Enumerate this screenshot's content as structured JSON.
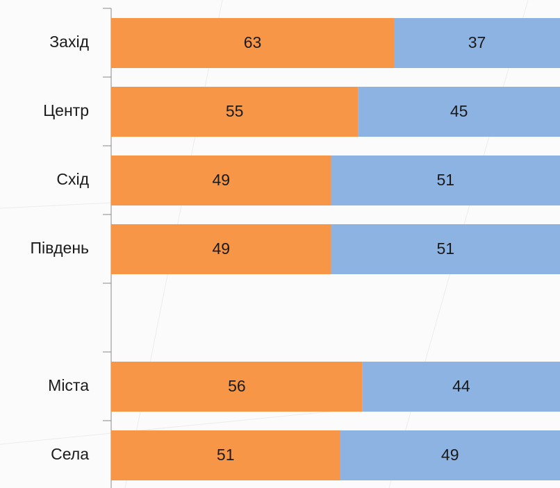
{
  "chart_data": {
    "type": "stacked-bar-horizontal",
    "categories": [
      "Захід",
      "Центр",
      "Схід",
      "Південь",
      null,
      "Міста",
      "Села"
    ],
    "series": [
      {
        "color": "#f79646",
        "values": [
          63,
          55,
          49,
          49,
          null,
          56,
          51
        ]
      },
      {
        "color": "#8db3e2",
        "values": [
          37,
          45,
          51,
          51,
          null,
          44,
          49
        ]
      }
    ],
    "xlim": [
      0,
      100
    ]
  }
}
